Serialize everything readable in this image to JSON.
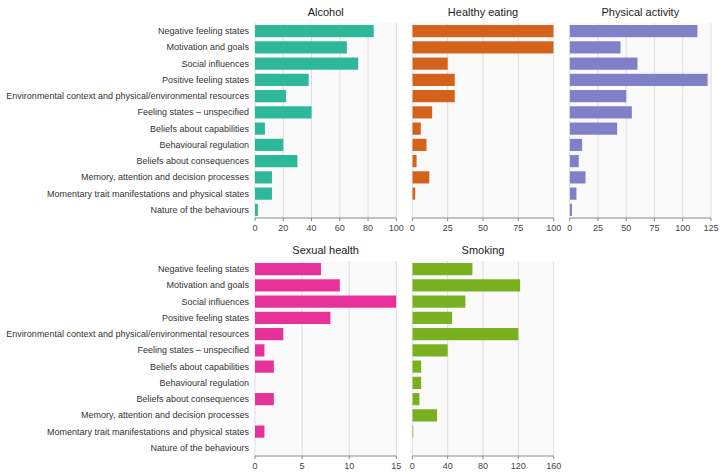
{
  "chart_data": [
    {
      "type": "bar",
      "orientation": "horizontal",
      "title": "Alcohol",
      "categories": [
        "Negative feeling states",
        "Motivation and goals",
        "Social influences",
        "Positive feeling states",
        "Environmental context and physical/environmental resources",
        "Feeling states – unspecified",
        "Beliefs about capabilities",
        "Behavioural regulation",
        "Beliefs about consequences",
        "Memory, attention and decision processes",
        "Momentary trait manifestations and physical states",
        "Nature of the behaviours"
      ],
      "values": [
        84,
        65,
        73,
        38,
        22,
        40,
        7,
        20,
        30,
        12,
        12,
        2
      ],
      "color": "#2db899",
      "xlim": [
        0,
        100
      ],
      "xticks": [
        0,
        20,
        40,
        60,
        80,
        100
      ],
      "grid": true
    },
    {
      "type": "bar",
      "orientation": "horizontal",
      "title": "Healthy eating",
      "categories": [
        "Negative feeling states",
        "Motivation and goals",
        "Social influences",
        "Positive feeling states",
        "Environmental context and physical/environmental resources",
        "Feeling states – unspecified",
        "Beliefs about capabilities",
        "Behavioural regulation",
        "Beliefs about consequences",
        "Memory, attention and decision processes",
        "Momentary trait manifestations and physical states",
        "Nature of the behaviours"
      ],
      "values": [
        100,
        100,
        25,
        30,
        30,
        14,
        6,
        10,
        3,
        12,
        2,
        0
      ],
      "color": "#d4621a",
      "xlim": [
        0,
        100
      ],
      "xticks": [
        0,
        25,
        50,
        75,
        100
      ],
      "grid": true,
      "tick_labels": "x"
    },
    {
      "type": "bar",
      "orientation": "horizontal",
      "title": "Physical activity",
      "categories": [
        "Negative feeling states",
        "Motivation and goals",
        "Social influences",
        "Positive feeling states",
        "Environmental context and physical/environmental resources",
        "Feeling states – unspecified",
        "Beliefs about capabilities",
        "Behavioural regulation",
        "Beliefs about consequences",
        "Memory, attention and decision processes",
        "Momentary trait manifestations and physical states",
        "Nature of the behaviours"
      ],
      "values": [
        113,
        45,
        60,
        122,
        50,
        55,
        42,
        11,
        8,
        14,
        6,
        2
      ],
      "color": "#8080c8",
      "xlim": [
        0,
        125
      ],
      "xticks": [
        0,
        25,
        50,
        75,
        100,
        125
      ],
      "grid": true,
      "tick_labels": "x"
    },
    {
      "type": "bar",
      "orientation": "horizontal",
      "title": "Sexual health",
      "categories": [
        "Negative feeling states",
        "Motivation and goals",
        "Social influences",
        "Positive feeling states",
        "Environmental context and physical/environmental resources",
        "Feeling states – unspecified",
        "Beliefs about capabilities",
        "Behavioural regulation",
        "Beliefs about consequences",
        "Memory, attention and decision processes",
        "Momentary trait manifestations and physical states",
        "Nature of the behaviours"
      ],
      "values": [
        7,
        9,
        15,
        8,
        3,
        1,
        2,
        0,
        2,
        0,
        1,
        0
      ],
      "color": "#e8309a",
      "xlim": [
        0,
        15
      ],
      "xticks": [
        0,
        5,
        10,
        15
      ],
      "grid": true
    },
    {
      "type": "bar",
      "orientation": "horizontal",
      "title": "Smoking",
      "categories": [
        "Negative feeling states",
        "Motivation and goals",
        "Social influences",
        "Positive feeling states",
        "Environmental context and physical/environmental resources",
        "Feeling states – unspecified",
        "Beliefs about capabilities",
        "Behavioural regulation",
        "Beliefs about consequences",
        "Memory, attention and decision processes",
        "Momentary trait manifestations and physical states",
        "Nature of the behaviours"
      ],
      "values": [
        68,
        122,
        60,
        45,
        120,
        40,
        10,
        10,
        8,
        28,
        1,
        0
      ],
      "color": "#78b020",
      "xlim": [
        0,
        160
      ],
      "xticks": [
        0,
        40,
        80,
        120,
        160
      ],
      "grid": true,
      "tick_labels": "x"
    }
  ]
}
